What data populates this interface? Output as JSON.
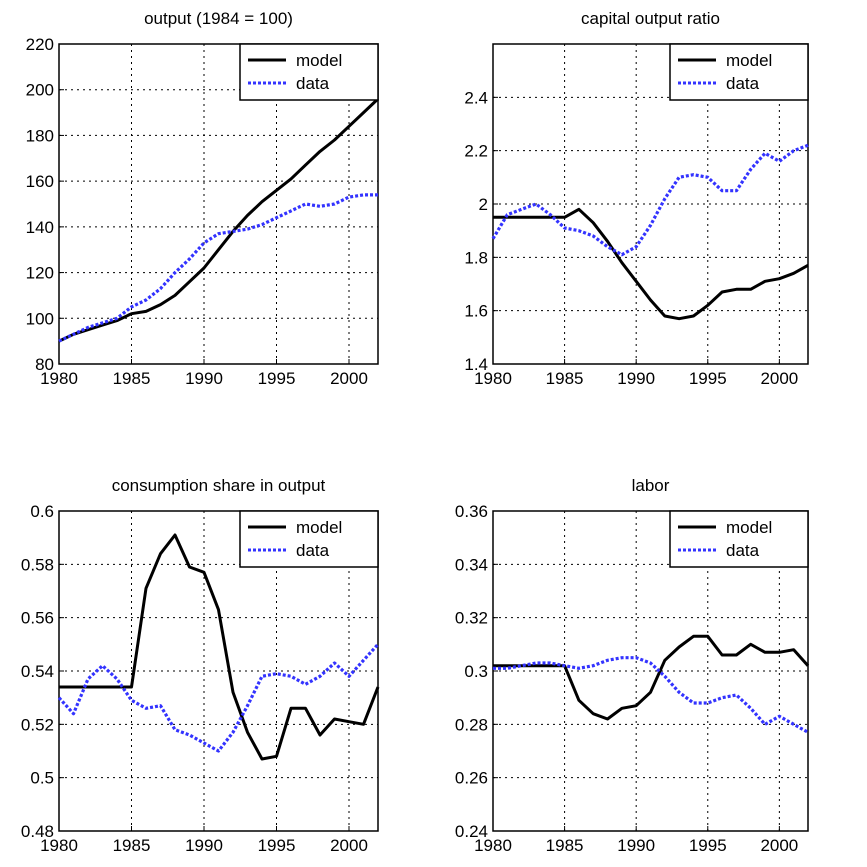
{
  "chart_data": [
    {
      "type": "line",
      "title": "output (1984 = 100)",
      "xlabel": "",
      "ylabel": "",
      "xlim": [
        1980,
        2002
      ],
      "ylim": [
        80,
        220
      ],
      "xticks": [
        1980,
        1985,
        1990,
        1995,
        2000
      ],
      "yticks": [
        80,
        100,
        120,
        140,
        160,
        180,
        200,
        220
      ],
      "yticks_text": [
        "80",
        "100",
        "120",
        "140",
        "160",
        "180",
        "200",
        "220"
      ],
      "grid": true,
      "legend_position": "top-right",
      "x": [
        1980,
        1981,
        1982,
        1983,
        1984,
        1985,
        1986,
        1987,
        1988,
        1989,
        1990,
        1991,
        1992,
        1993,
        1994,
        1995,
        1996,
        1997,
        1998,
        1999,
        2000,
        2001,
        2002
      ],
      "series": [
        {
          "name": "model",
          "color": "#000000",
          "style": "solid",
          "values": [
            90,
            93,
            95,
            97,
            99,
            102,
            103,
            106,
            110,
            116,
            122,
            130,
            138,
            145,
            151,
            156,
            161,
            167,
            173,
            178,
            184,
            190,
            196
          ]
        },
        {
          "name": "data",
          "color": "#3333ff",
          "style": "dotted",
          "values": [
            90,
            93,
            96,
            98,
            100,
            105,
            108,
            113,
            120,
            126,
            133,
            137,
            138,
            139,
            141,
            144,
            147,
            150,
            149,
            150,
            153,
            154,
            154
          ]
        }
      ]
    },
    {
      "type": "line",
      "title": "capital output ratio",
      "xlabel": "",
      "ylabel": "",
      "xlim": [
        1980,
        2002
      ],
      "ylim": [
        1.4,
        2.6
      ],
      "xticks": [
        1980,
        1985,
        1990,
        1995,
        2000
      ],
      "yticks": [
        1.4,
        1.6,
        1.8,
        2.0,
        2.2,
        2.4
      ],
      "yticks_text": [
        "1.4",
        "1.6",
        "1.8",
        "2",
        "2.2",
        "2.4"
      ],
      "grid": true,
      "legend_position": "top-right",
      "x": [
        1980,
        1981,
        1982,
        1983,
        1984,
        1985,
        1986,
        1987,
        1988,
        1989,
        1990,
        1991,
        1992,
        1993,
        1994,
        1995,
        1996,
        1997,
        1998,
        1999,
        2000,
        2001,
        2002
      ],
      "series": [
        {
          "name": "model",
          "color": "#000000",
          "style": "solid",
          "values": [
            1.95,
            1.95,
            1.95,
            1.95,
            1.95,
            1.95,
            1.98,
            1.93,
            1.86,
            1.78,
            1.71,
            1.64,
            1.58,
            1.57,
            1.58,
            1.62,
            1.67,
            1.68,
            1.68,
            1.71,
            1.72,
            1.74,
            1.77
          ]
        },
        {
          "name": "data",
          "color": "#3333ff",
          "style": "dotted",
          "values": [
            1.87,
            1.96,
            1.98,
            2.0,
            1.96,
            1.91,
            1.9,
            1.88,
            1.84,
            1.81,
            1.84,
            1.92,
            2.02,
            2.1,
            2.11,
            2.1,
            2.05,
            2.05,
            2.13,
            2.19,
            2.16,
            2.2,
            2.22
          ]
        }
      ]
    },
    {
      "type": "line",
      "title": "consumption share in output",
      "xlabel": "",
      "ylabel": "",
      "xlim": [
        1980,
        2002
      ],
      "ylim": [
        0.48,
        0.6
      ],
      "xticks": [
        1980,
        1985,
        1990,
        1995,
        2000
      ],
      "yticks": [
        0.48,
        0.5,
        0.52,
        0.54,
        0.56,
        0.58,
        0.6
      ],
      "yticks_text": [
        "0.48",
        "0.5",
        "0.52",
        "0.54",
        "0.56",
        "0.58",
        "0.6"
      ],
      "grid": true,
      "legend_position": "top-right",
      "x": [
        1980,
        1981,
        1982,
        1983,
        1984,
        1985,
        1986,
        1987,
        1988,
        1989,
        1990,
        1991,
        1992,
        1993,
        1994,
        1995,
        1996,
        1997,
        1998,
        1999,
        2000,
        2001,
        2002
      ],
      "series": [
        {
          "name": "model",
          "color": "#000000",
          "style": "solid",
          "values": [
            0.534,
            0.534,
            0.534,
            0.534,
            0.534,
            0.534,
            0.571,
            0.584,
            0.591,
            0.579,
            0.577,
            0.563,
            0.532,
            0.517,
            0.507,
            0.508,
            0.526,
            0.526,
            0.516,
            0.522,
            0.521,
            0.52,
            0.534
          ]
        },
        {
          "name": "data",
          "color": "#3333ff",
          "style": "dotted",
          "values": [
            0.53,
            0.524,
            0.537,
            0.542,
            0.537,
            0.529,
            0.526,
            0.527,
            0.518,
            0.516,
            0.513,
            0.51,
            0.517,
            0.527,
            0.538,
            0.539,
            0.538,
            0.535,
            0.538,
            0.543,
            0.538,
            0.544,
            0.55
          ]
        }
      ]
    },
    {
      "type": "line",
      "title": "labor",
      "xlabel": "",
      "ylabel": "",
      "xlim": [
        1980,
        2002
      ],
      "ylim": [
        0.24,
        0.36
      ],
      "xticks": [
        1980,
        1985,
        1990,
        1995,
        2000
      ],
      "yticks": [
        0.24,
        0.26,
        0.28,
        0.3,
        0.32,
        0.34,
        0.36
      ],
      "yticks_text": [
        "0.24",
        "0.26",
        "0.28",
        "0.3",
        "0.32",
        "0.34",
        "0.36"
      ],
      "grid": true,
      "legend_position": "top-right",
      "x": [
        1980,
        1981,
        1982,
        1983,
        1984,
        1985,
        1986,
        1987,
        1988,
        1989,
        1990,
        1991,
        1992,
        1993,
        1994,
        1995,
        1996,
        1997,
        1998,
        1999,
        2000,
        2001,
        2002
      ],
      "series": [
        {
          "name": "model",
          "color": "#000000",
          "style": "solid",
          "values": [
            0.302,
            0.302,
            0.302,
            0.302,
            0.302,
            0.302,
            0.289,
            0.284,
            0.282,
            0.286,
            0.287,
            0.292,
            0.304,
            0.309,
            0.313,
            0.313,
            0.306,
            0.306,
            0.31,
            0.307,
            0.307,
            0.308,
            0.302
          ]
        },
        {
          "name": "data",
          "color": "#3333ff",
          "style": "dotted",
          "values": [
            0.301,
            0.301,
            0.302,
            0.303,
            0.303,
            0.302,
            0.301,
            0.302,
            0.304,
            0.305,
            0.305,
            0.303,
            0.298,
            0.292,
            0.288,
            0.288,
            0.29,
            0.291,
            0.286,
            0.28,
            0.283,
            0.28,
            0.277
          ]
        }
      ]
    }
  ]
}
